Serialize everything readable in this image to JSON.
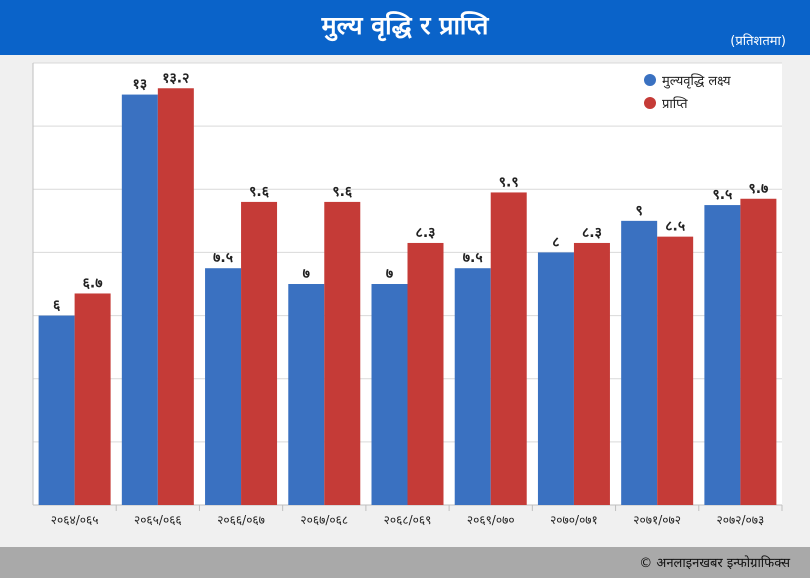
{
  "header": {
    "title": "मुल्य वृद्धि र प्राप्ति",
    "unit": "(प्रतिशतमा)"
  },
  "footer": {
    "credit": "© अनलाइनखबर इन्फोग्राफिक्स"
  },
  "chart_data": {
    "type": "bar",
    "title": "मुल्य वृद्धि र प्राप्ति",
    "unit": "(प्रतिशतमा)",
    "categories": [
      "२०६४/०६५",
      "२०६५/०६६",
      "२०६६/०६७",
      "२०६७/०६८",
      "२०६८/०६९",
      "२०६९/०७०",
      "२०७०/०७१",
      "२०७१/०७२",
      "२०७२/०७३"
    ],
    "series": [
      {
        "name": "मुल्यवृद्धि लक्ष्य",
        "color": "#3a71c1",
        "values": [
          6,
          13,
          7.5,
          7,
          7,
          7.5,
          8,
          9,
          9.5
        ],
        "labels": [
          "६",
          "१३",
          "७.५",
          "७",
          "७",
          "७.५",
          "८",
          "९",
          "९.५"
        ]
      },
      {
        "name": "प्राप्ति",
        "color": "#c53b37",
        "values": [
          6.7,
          13.2,
          9.6,
          9.6,
          8.3,
          9.9,
          8.3,
          8.5,
          9.7
        ],
        "labels": [
          "६.७",
          "१३.२",
          "९.६",
          "९.६",
          "८.३",
          "९.९",
          "८.३",
          "८.५",
          "९.७"
        ]
      }
    ],
    "ylim": [
      0,
      14
    ],
    "grid": true,
    "legend": "top-right"
  }
}
